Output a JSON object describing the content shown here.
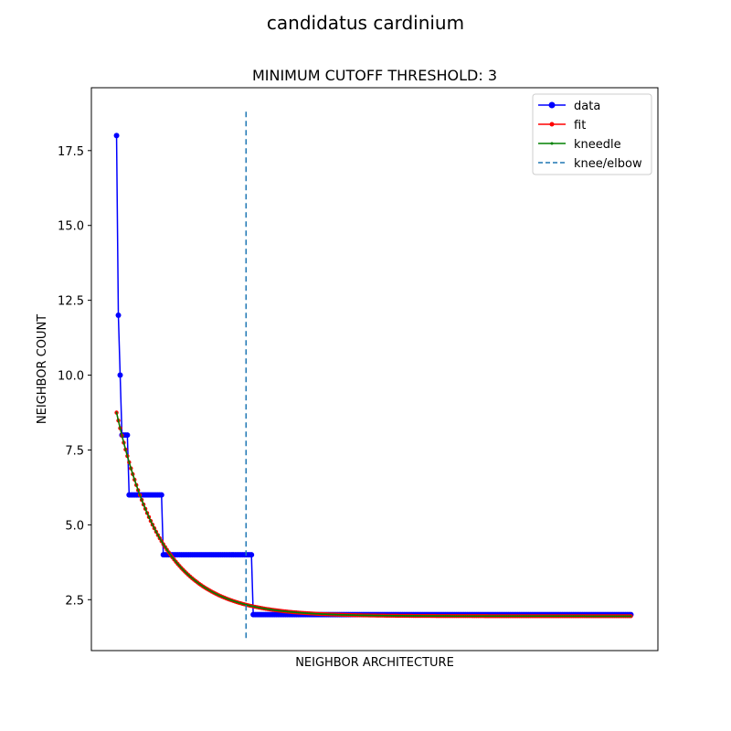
{
  "chart_data": {
    "type": "line",
    "suptitle": "candidatus cardinium",
    "title": "MINIMUM CUTOFF THRESHOLD: 3",
    "xlabel": "NEIGHBOR ARCHITECTURE",
    "ylabel": "NEIGHBOR COUNT",
    "xlim": [
      -3,
      312
    ],
    "ylim": [
      0.8,
      19.6
    ],
    "yticks": [
      2.5,
      5.0,
      7.5,
      10.0,
      12.5,
      15.0,
      17.5
    ],
    "ytick_labels": [
      "2.5",
      "5.0",
      "7.5",
      "10.0",
      "12.5",
      "15.0",
      "17.5"
    ],
    "x_ticks_shown": false,
    "legend_position": "upper right",
    "grid": false,
    "colors": {
      "data": "#0000ff",
      "fit": "#ff0000",
      "kneedle": "#008000",
      "knee": "#1f77b4"
    },
    "series": [
      {
        "name": "data",
        "style": "line-dot",
        "segments": [
          {
            "x_start": 11,
            "x_end": 11,
            "y": 18
          },
          {
            "x_start": 12,
            "x_end": 12,
            "y": 12
          },
          {
            "x_start": 13,
            "x_end": 13,
            "y": 10
          },
          {
            "x_start": 14,
            "x_end": 17,
            "y": 8
          },
          {
            "x_start": 18,
            "x_end": 36,
            "y": 6
          },
          {
            "x_start": 37,
            "x_end": 86,
            "y": 4
          },
          {
            "x_start": 87,
            "x_end": 297,
            "y": 2
          }
        ]
      },
      {
        "name": "fit",
        "style": "line-dot",
        "model": "exponential",
        "x_start": 11,
        "x_end": 297,
        "a": 6.8,
        "b": 0.04,
        "c": 1.95
      },
      {
        "name": "kneedle",
        "style": "line-dot",
        "model": "exponential",
        "x_start": 11,
        "x_end": 297,
        "a": 6.8,
        "b": 0.04,
        "c": 1.95
      }
    ],
    "knee": {
      "name": "knee/elbow",
      "x": 83,
      "y_range": [
        1.2,
        18.8
      ]
    }
  }
}
